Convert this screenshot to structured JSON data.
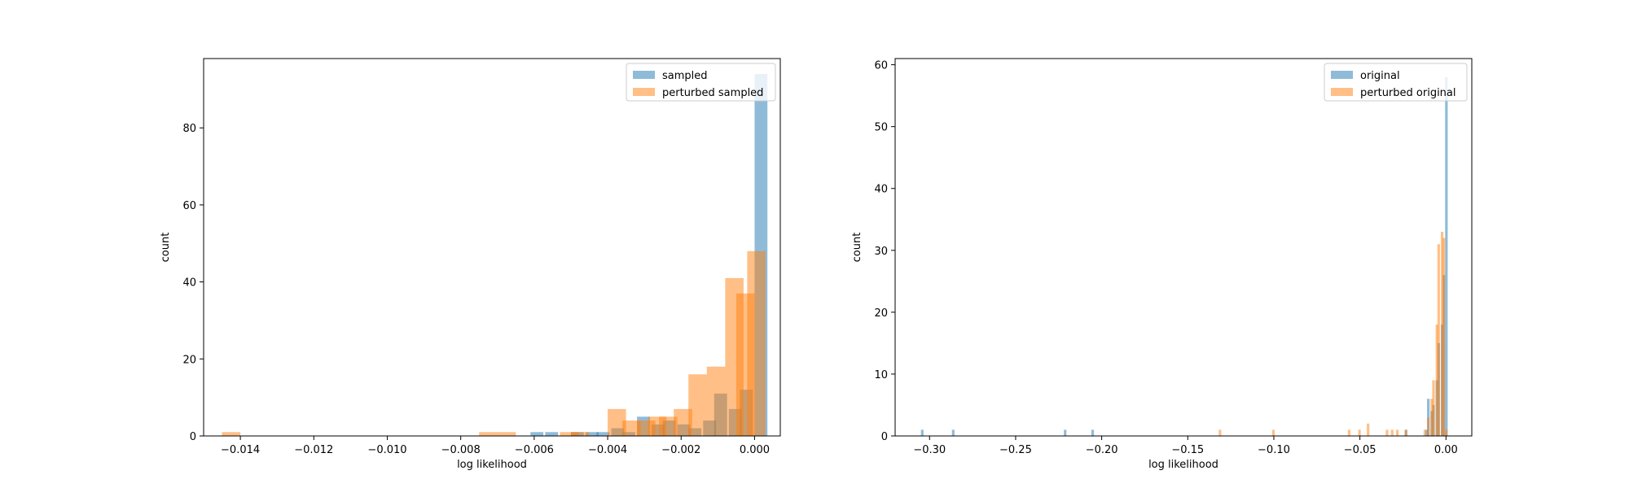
{
  "colors": {
    "series1": "#1f77b4",
    "series2": "#ff7f0e"
  },
  "chart_data": [
    {
      "type": "bar",
      "subtype": "histogram",
      "title": "",
      "xlabel": "log likelihood",
      "ylabel": "count",
      "xlim": [
        -0.015,
        0.0007
      ],
      "ylim": [
        0,
        98
      ],
      "xticks": [
        -0.014,
        -0.012,
        -0.01,
        -0.008,
        -0.006,
        -0.004,
        -0.002,
        0.0
      ],
      "xtick_labels": [
        "−0.014",
        "−0.012",
        "−0.010",
        "−0.008",
        "−0.006",
        "−0.004",
        "−0.002",
        "0.000"
      ],
      "yticks": [
        0,
        20,
        40,
        60,
        80
      ],
      "ytick_labels": [
        "0",
        "20",
        "40",
        "60",
        "80"
      ],
      "legend_position": "top-right",
      "grid": false,
      "series": [
        {
          "name": "sampled",
          "color_key": "series1",
          "bin_width": 0.00035,
          "bins": [
            [
              -0.0061,
              1
            ],
            [
              -0.0057,
              1
            ],
            [
              -0.005,
              1
            ],
            [
              -0.0046,
              1
            ],
            [
              -0.0043,
              1
            ],
            [
              -0.0039,
              2
            ],
            [
              -0.0036,
              1
            ],
            [
              -0.0032,
              5
            ],
            [
              -0.0028,
              3
            ],
            [
              -0.0025,
              4
            ],
            [
              -0.0021,
              3
            ],
            [
              -0.0018,
              2
            ],
            [
              -0.0014,
              4
            ],
            [
              -0.0011,
              11
            ],
            [
              -0.0007,
              7
            ],
            [
              -0.0004,
              12
            ],
            [
              0.0,
              94
            ]
          ]
        },
        {
          "name": "perturbed sampled",
          "color_key": "series2",
          "bin_width": 0.0005,
          "bins": [
            [
              -0.0145,
              1
            ],
            [
              -0.0075,
              1
            ],
            [
              -0.007,
              1
            ],
            [
              -0.0053,
              1
            ],
            [
              -0.005,
              1
            ],
            [
              -0.004,
              7
            ],
            [
              -0.0036,
              4
            ],
            [
              -0.0032,
              4
            ],
            [
              -0.0029,
              5
            ],
            [
              -0.0026,
              5
            ],
            [
              -0.0022,
              7
            ],
            [
              -0.0018,
              16
            ],
            [
              -0.0013,
              18
            ],
            [
              -0.0008,
              41
            ],
            [
              -0.0005,
              37
            ],
            [
              -0.0002,
              48
            ]
          ]
        }
      ]
    },
    {
      "type": "bar",
      "subtype": "histogram",
      "title": "",
      "xlabel": "log likelihood",
      "ylabel": "count",
      "xlim": [
        -0.32,
        0.015
      ],
      "ylim": [
        0,
        61
      ],
      "xticks": [
        -0.3,
        -0.25,
        -0.2,
        -0.15,
        -0.1,
        -0.05,
        0.0
      ],
      "xtick_labels": [
        "−0.30",
        "−0.25",
        "−0.20",
        "−0.15",
        "−0.10",
        "−0.05",
        "0.00"
      ],
      "yticks": [
        0,
        10,
        20,
        30,
        40,
        50,
        60
      ],
      "ytick_labels": [
        "0",
        "10",
        "20",
        "30",
        "40",
        "50",
        "60"
      ],
      "legend_position": "top-right",
      "grid": false,
      "series": [
        {
          "name": "original",
          "color_key": "series1",
          "bin_width": 0.0015,
          "bins": [
            [
              -0.305,
              1
            ],
            [
              -0.287,
              1
            ],
            [
              -0.222,
              1
            ],
            [
              -0.206,
              1
            ],
            [
              -0.024,
              1
            ],
            [
              -0.012,
              1
            ],
            [
              -0.011,
              6
            ],
            [
              -0.009,
              4
            ],
            [
              -0.008,
              5
            ],
            [
              -0.006,
              9
            ],
            [
              -0.005,
              15
            ],
            [
              -0.003,
              18
            ],
            [
              -0.002,
              26
            ],
            [
              -0.0005,
              58
            ]
          ]
        },
        {
          "name": "perturbed original",
          "color_key": "series2",
          "bin_width": 0.0015,
          "bins": [
            [
              -0.132,
              1
            ],
            [
              -0.101,
              1
            ],
            [
              -0.057,
              1
            ],
            [
              -0.051,
              1
            ],
            [
              -0.046,
              2
            ],
            [
              -0.035,
              1
            ],
            [
              -0.032,
              1
            ],
            [
              -0.029,
              1
            ],
            [
              -0.024,
              1
            ],
            [
              -0.013,
              1
            ],
            [
              -0.011,
              3
            ],
            [
              -0.009,
              6
            ],
            [
              -0.008,
              9
            ],
            [
              -0.006,
              18
            ],
            [
              -0.005,
              31
            ],
            [
              -0.003,
              33
            ],
            [
              -0.002,
              32
            ],
            [
              -0.0005,
              1
            ]
          ]
        }
      ]
    }
  ]
}
